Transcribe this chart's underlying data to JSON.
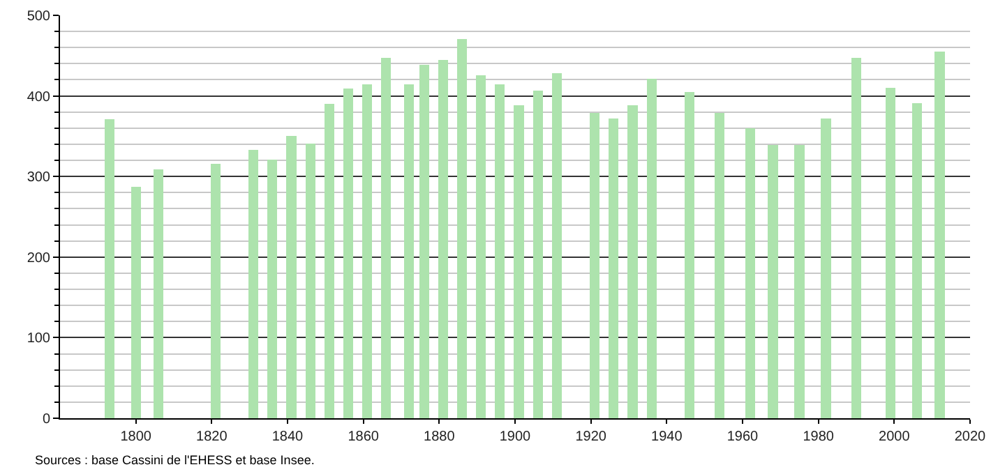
{
  "chart_data": {
    "type": "bar",
    "x": [
      1793,
      1800,
      1806,
      1821,
      1831,
      1836,
      1841,
      1846,
      1851,
      1856,
      1861,
      1866,
      1872,
      1876,
      1881,
      1886,
      1891,
      1896,
      1901,
      1906,
      1911,
      1921,
      1926,
      1931,
      1936,
      1946,
      1954,
      1962,
      1968,
      1975,
      1982,
      1990,
      1999,
      2006,
      2012
    ],
    "values": [
      371,
      287,
      309,
      316,
      333,
      321,
      350,
      341,
      390,
      409,
      414,
      447,
      414,
      439,
      445,
      471,
      426,
      414,
      388,
      407,
      428,
      379,
      372,
      388,
      421,
      405,
      379,
      360,
      339,
      339,
      372,
      447,
      410,
      391,
      455
    ],
    "color": "#ade3ad",
    "xlim": [
      1780,
      2020
    ],
    "xticks": [
      1800,
      1820,
      1840,
      1860,
      1880,
      1900,
      1920,
      1940,
      1960,
      1980,
      2000,
      2020
    ],
    "ylim": [
      0,
      500
    ],
    "yticks": [
      0,
      {
        "value": 20,
        "label": null
      },
      {
        "value": 40,
        "label": null
      },
      {
        "value": 60,
        "label": null
      },
      {
        "value": 80,
        "label": null
      },
      100,
      {
        "value": 120,
        "label": null
      },
      {
        "value": 140,
        "label": null
      },
      {
        "value": 160,
        "label": null
      },
      {
        "value": 180,
        "label": null
      },
      200,
      {
        "value": 220,
        "label": null
      },
      {
        "value": 240,
        "label": null
      },
      {
        "value": 260,
        "label": null
      },
      {
        "value": 280,
        "label": null
      },
      300,
      {
        "value": 320,
        "label": null
      },
      {
        "value": 340,
        "label": null
      },
      {
        "value": 360,
        "label": null
      },
      {
        "value": 380,
        "label": null
      },
      400,
      {
        "value": 420,
        "label": null
      },
      {
        "value": 440,
        "label": null
      },
      {
        "value": 460,
        "label": null
      },
      {
        "value": 480,
        "label": null
      },
      500
    ],
    "grid": "y",
    "annotations": [
      "Sources : base Cassini de l'EHESS et base Insee."
    ]
  }
}
